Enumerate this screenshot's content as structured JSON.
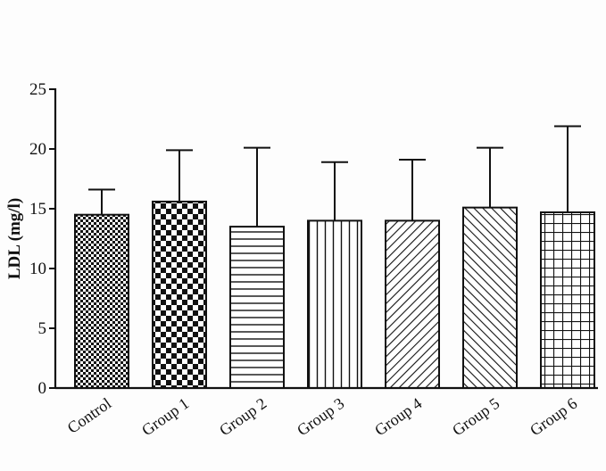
{
  "chart_data": {
    "type": "bar",
    "title": "",
    "xlabel": "",
    "ylabel": "LDL (mg/l)",
    "ylim": [
      0,
      25
    ],
    "yticks": [
      "0",
      "5",
      "10",
      "15",
      "20",
      "25"
    ],
    "categories": [
      "Control",
      "Group 1",
      "Group 2",
      "Group 3",
      "Group 4",
      "Group 5",
      "Group 6"
    ],
    "values": [
      14.5,
      15.6,
      13.5,
      14.0,
      14.0,
      15.1,
      14.7
    ],
    "error_upper": [
      2.1,
      4.3,
      6.6,
      4.9,
      5.1,
      5.0,
      7.2
    ],
    "patterns": [
      "fine-checker",
      "coarse-checker",
      "horizontal-lines",
      "vertical-lines",
      "diagonal-forward",
      "diagonal-backward",
      "grid"
    ],
    "grid": false,
    "legend": "none",
    "colors": {
      "ink": "#111111",
      "background": "#fdfdfd"
    }
  }
}
